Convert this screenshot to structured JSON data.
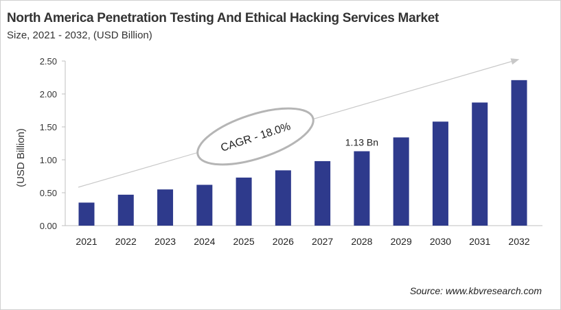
{
  "chart_data": {
    "type": "bar",
    "title": "North America Penetration Testing And Ethical Hacking Services Market",
    "subtitle": "Size, 2021 - 2032, (USD Billion)",
    "xlabel": "",
    "ylabel": "(USD Billion)",
    "ylim": [
      0,
      2.5
    ],
    "yticks": [
      "0.00",
      "0.50",
      "1.00",
      "1.50",
      "2.00",
      "2.50"
    ],
    "categories": [
      "2021",
      "2022",
      "2023",
      "2024",
      "2025",
      "2026",
      "2027",
      "2028",
      "2029",
      "2030",
      "2031",
      "2032"
    ],
    "values": [
      0.35,
      0.47,
      0.55,
      0.62,
      0.73,
      0.84,
      0.98,
      1.13,
      1.34,
      1.58,
      1.87,
      2.21
    ],
    "bar_color": "#2e3a8c",
    "grid": false,
    "annotations": {
      "cagr": "CAGR - 18.0%",
      "data_label": "1.13 Bn",
      "data_label_category": "2028"
    },
    "source": "Source: www.kbvresearch.com"
  }
}
